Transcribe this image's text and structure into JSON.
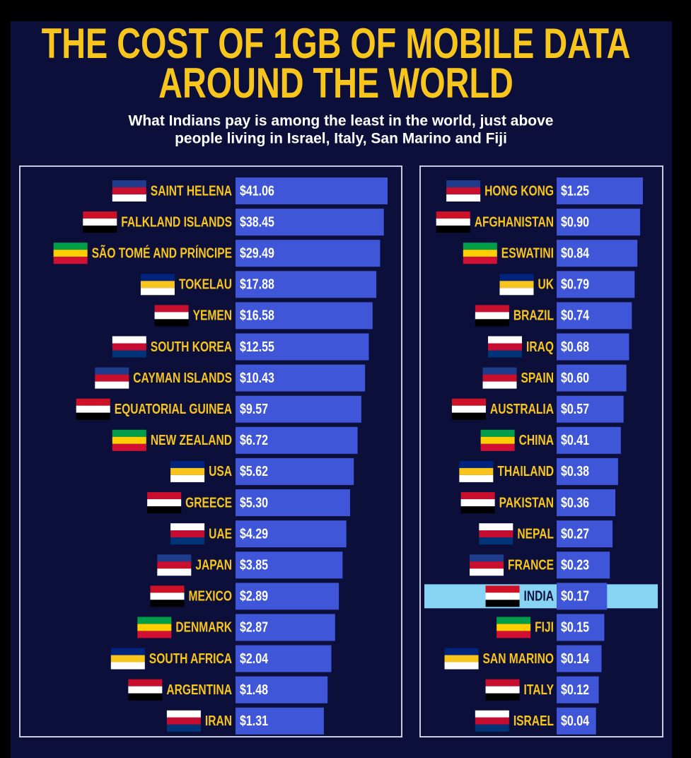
{
  "header": {
    "title_line1": "THE COST OF 1GB OF MOBILE DATA",
    "title_line2": "AROUND THE WORLD",
    "subtitle_line1": "What Indians pay is among the least in the world, just above",
    "subtitle_line2": "people living in Israel, Italy, San Marino and Fiji"
  },
  "left": [
    {
      "country": "SAINT HELENA",
      "price": "$41.06"
    },
    {
      "country": "FALKLAND ISLANDS",
      "price": "$38.45"
    },
    {
      "country": "SÃO TOMÉ AND PRÍNCIPE",
      "price": "$29.49"
    },
    {
      "country": "TOKELAU",
      "price": "$17.88"
    },
    {
      "country": "YEMEN",
      "price": "$16.58"
    },
    {
      "country": "SOUTH KOREA",
      "price": "$12.55"
    },
    {
      "country": "CAYMAN ISLANDS",
      "price": "$10.43"
    },
    {
      "country": "EQUATORIAL GUINEA",
      "price": "$9.57"
    },
    {
      "country": "NEW ZEALAND",
      "price": "$6.72"
    },
    {
      "country": "USA",
      "price": "$5.62"
    },
    {
      "country": "GREECE",
      "price": "$5.30"
    },
    {
      "country": "UAE",
      "price": "$4.29"
    },
    {
      "country": "JAPAN",
      "price": "$3.85"
    },
    {
      "country": "MEXICO",
      "price": "$2.89"
    },
    {
      "country": "DENMARK",
      "price": "$2.87"
    },
    {
      "country": "SOUTH AFRICA",
      "price": "$2.04"
    },
    {
      "country": "ARGENTINA",
      "price": "$1.48"
    },
    {
      "country": "IRAN",
      "price": "$1.31"
    }
  ],
  "right": [
    {
      "country": "HONG KONG",
      "price": "$1.25"
    },
    {
      "country": "AFGHANISTAN",
      "price": "$0.90"
    },
    {
      "country": "ESWATINI",
      "price": "$0.84"
    },
    {
      "country": "UK",
      "price": "$0.79"
    },
    {
      "country": "BRAZIL",
      "price": "$0.74"
    },
    {
      "country": "IRAQ",
      "price": "$0.68"
    },
    {
      "country": "SPAIN",
      "price": "$0.60"
    },
    {
      "country": "AUSTRALIA",
      "price": "$0.57"
    },
    {
      "country": "CHINA",
      "price": "$0.41"
    },
    {
      "country": "THAILAND",
      "price": "$0.38"
    },
    {
      "country": "PAKISTAN",
      "price": "$0.36"
    },
    {
      "country": "NEPAL",
      "price": "$0.27"
    },
    {
      "country": "FRANCE",
      "price": "$0.23"
    },
    {
      "country": "INDIA",
      "price": "$0.17"
    },
    {
      "country": "FIJI",
      "price": "$0.15"
    },
    {
      "country": "SAN MARINO",
      "price": "$0.14"
    },
    {
      "country": "ITALY",
      "price": "$0.12"
    },
    {
      "country": "ISRAEL",
      "price": "$0.04"
    }
  ]
}
